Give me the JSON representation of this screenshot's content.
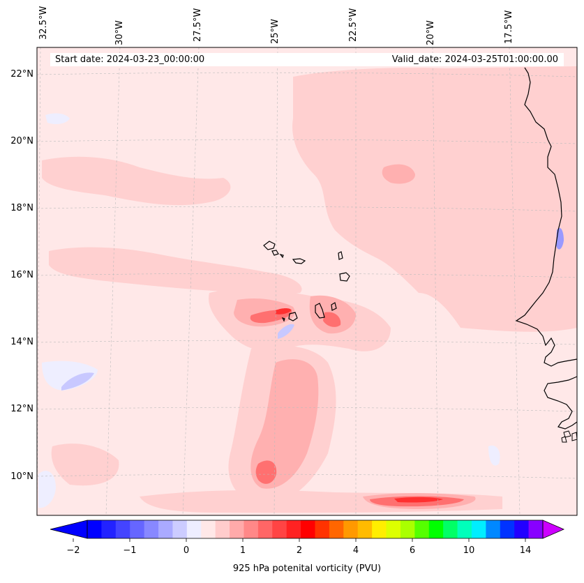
{
  "header": {
    "start_date": "Start date: 2024-03-23_00:00:00",
    "valid_date": "Valid_date: 2024-03-25T01:00:00.00"
  },
  "axes": {
    "lon_labels": [
      "32.5°W",
      "30°W",
      "27.5°W",
      "25°W",
      "22.5°W",
      "20°W",
      "17.5°W"
    ],
    "lat_labels": [
      "22°N",
      "20°N",
      "18°N",
      "16°N",
      "14°N",
      "12°N",
      "10°N"
    ]
  },
  "colorbar": {
    "label": "925 hPa potenital vorticity (PVU)",
    "ticks": [
      "−2",
      "−1",
      "0",
      "1",
      "2",
      "4",
      "6",
      "10",
      "14"
    ],
    "colors": [
      "#0000ff",
      "#2222ff",
      "#4444ff",
      "#6666ff",
      "#8888ff",
      "#aaaaff",
      "#ccccff",
      "#eeeeff",
      "#ffe8e8",
      "#ffcccc",
      "#ffaaaa",
      "#ff8888",
      "#ff6666",
      "#ff4444",
      "#ff2222",
      "#ff0000",
      "#ff3300",
      "#ff6600",
      "#ff9900",
      "#ffbb00",
      "#ffee00",
      "#ddff00",
      "#aaff00",
      "#55ff00",
      "#00ff00",
      "#00ff66",
      "#00ffbb",
      "#00eeff",
      "#0088ff",
      "#0033ff",
      "#2200ff",
      "#8800ff"
    ],
    "under_color": "#0000ff",
    "over_color": "#cc00ff"
  },
  "map": {
    "background_color": "#ffe8e8",
    "field_colors": {
      "light_pink": "#ffd0d0",
      "pink": "#ffb0b0",
      "red": "#ff7070",
      "strong_red": "#ff3030",
      "light_blue": "#eeeeff",
      "blue": "#c8c8ff"
    }
  }
}
